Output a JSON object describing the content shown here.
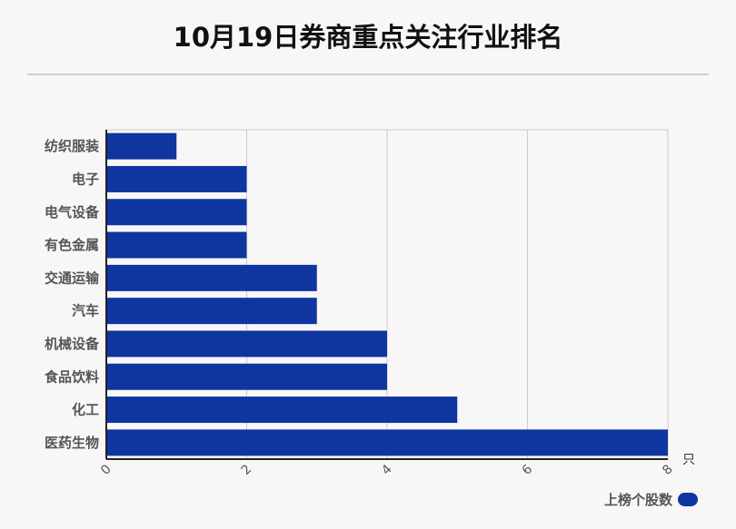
{
  "chart_data": {
    "type": "bar",
    "orientation": "horizontal",
    "title": "10月19日券商重点关注行业排名",
    "categories": [
      "纺织服装",
      "电子",
      "电气设备",
      "有色金属",
      "交通运输",
      "汽车",
      "机械设备",
      "食品饮料",
      "化工",
      "医药生物"
    ],
    "series": [
      {
        "name": "上榜个股数",
        "values": [
          1,
          2,
          2,
          2,
          3,
          3,
          4,
          4,
          5,
          8
        ],
        "color": "#0f36a0"
      }
    ],
    "x_unit": "只",
    "xlim": [
      0,
      8
    ],
    "x_ticks": [
      "0",
      "2",
      "4",
      "6",
      "8"
    ],
    "grid": true,
    "legend_position": "bottom-right"
  }
}
